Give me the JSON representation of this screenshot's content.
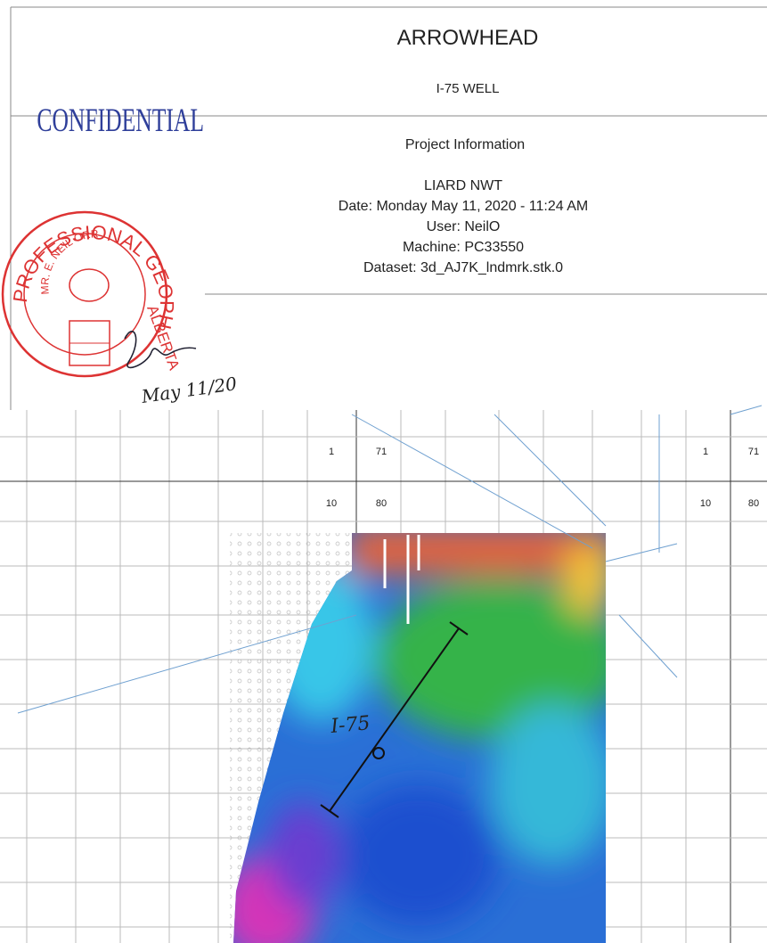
{
  "header": {
    "title": "ARROWHEAD",
    "subtitle": "I-75 WELL"
  },
  "stamp": {
    "confidential": "CONFIDENTIAL",
    "seal_top": "PROFESSIONAL GEOPHYSICIST",
    "seal_name": "MR. E. NEIL ORR",
    "seal_province": "ALBERTA",
    "signature_date": "May 11/20"
  },
  "project_info": {
    "heading": "Project Information",
    "location": "LIARD NWT",
    "date": "Date: Monday May 11, 2020 - 11:24 AM",
    "user": "User: NeilO",
    "machine": "Machine: PC33550",
    "dataset": "Dataset: 3d_AJ7K_lndmrk.stk.0"
  },
  "map": {
    "grid_labels": [
      "1",
      "71",
      "10",
      "80",
      "1",
      "71",
      "10",
      "80"
    ],
    "well_label": "I-75"
  }
}
